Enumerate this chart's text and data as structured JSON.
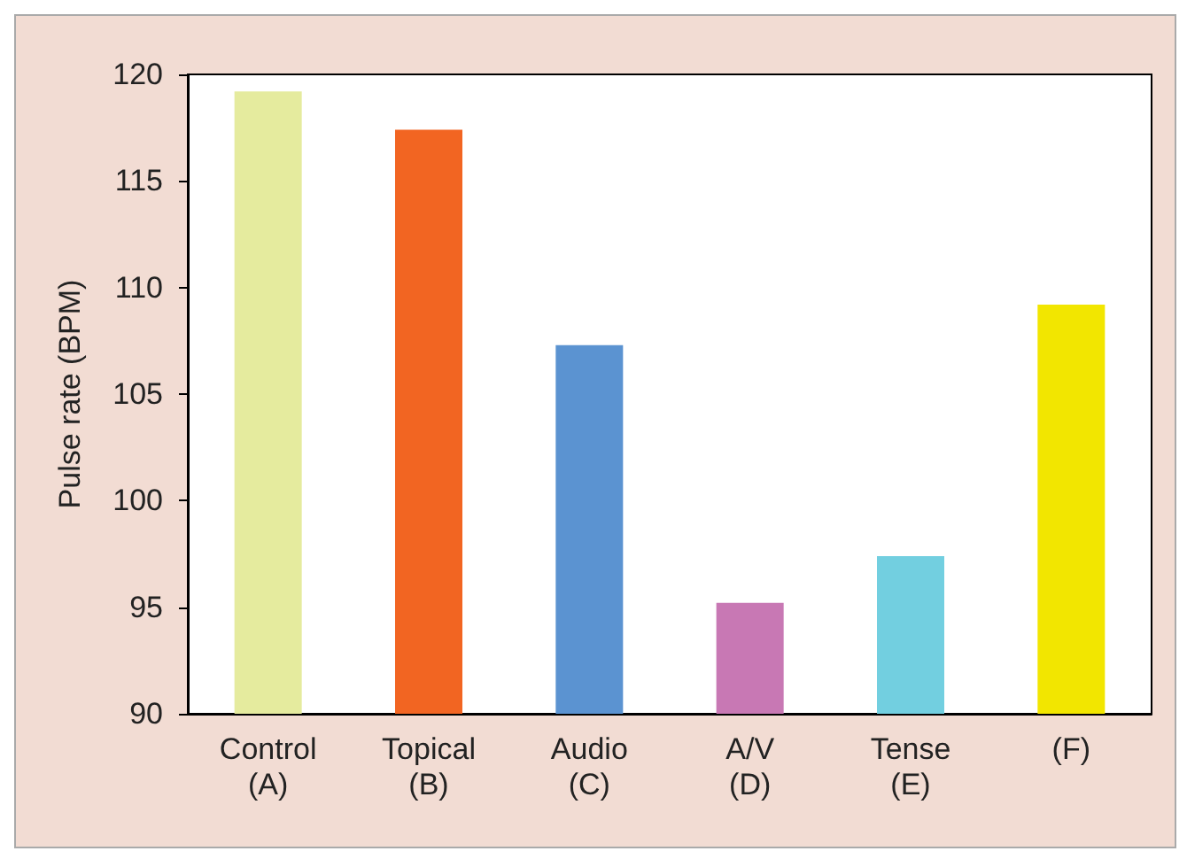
{
  "chart_data": {
    "type": "bar",
    "ylabel": "Pulse rate (BPM)",
    "categories": [
      "Control\n(A)",
      "Topical\n(B)",
      "Audio\n(C)",
      "A/V\n(D)",
      "Tense\n(E)",
      "(F)"
    ],
    "values": [
      119.2,
      117.4,
      107.3,
      95.2,
      97.4,
      109.2
    ],
    "colors": [
      "#e5eb9e",
      "#f26522",
      "#5b93d1",
      "#c878b4",
      "#72cfe0",
      "#f2e600"
    ],
    "ylim": [
      90,
      120
    ],
    "yticks": [
      90,
      95,
      100,
      105,
      110,
      115,
      120
    ],
    "grid": false
  }
}
